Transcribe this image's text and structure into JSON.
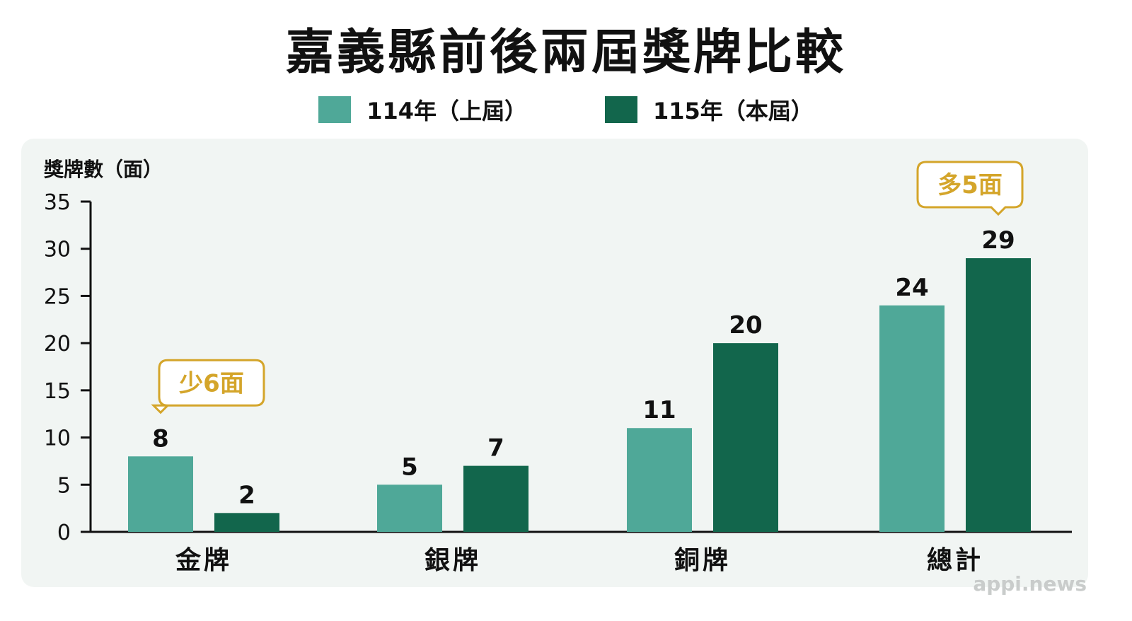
{
  "colors": {
    "series_prev": "#4fa898",
    "series_curr": "#12664c",
    "callout": "#d4a52a",
    "axis": "#111111",
    "panel": "#f1f5f3"
  },
  "chart_data": {
    "type": "bar",
    "title": "嘉義縣前後兩屆獎牌比較",
    "ylabel": "獎牌數（面）",
    "xlabel": "",
    "ylim": [
      0,
      35
    ],
    "yticks": [
      0,
      5,
      10,
      15,
      20,
      25,
      30,
      35
    ],
    "grid": false,
    "legend_position": "top-center",
    "categories": [
      "金牌",
      "銀牌",
      "銅牌",
      "總計"
    ],
    "series": [
      {
        "name": "114年（上屆）",
        "values": [
          8,
          5,
          11,
          24
        ]
      },
      {
        "name": "115年（本屆）",
        "values": [
          2,
          7,
          20,
          29
        ]
      }
    ],
    "annotations": [
      {
        "text": "少6面",
        "category_index": 0,
        "series_index": 0
      },
      {
        "text": "多5面",
        "category_index": 3,
        "series_index": 1
      }
    ]
  },
  "watermark": "appi.news"
}
